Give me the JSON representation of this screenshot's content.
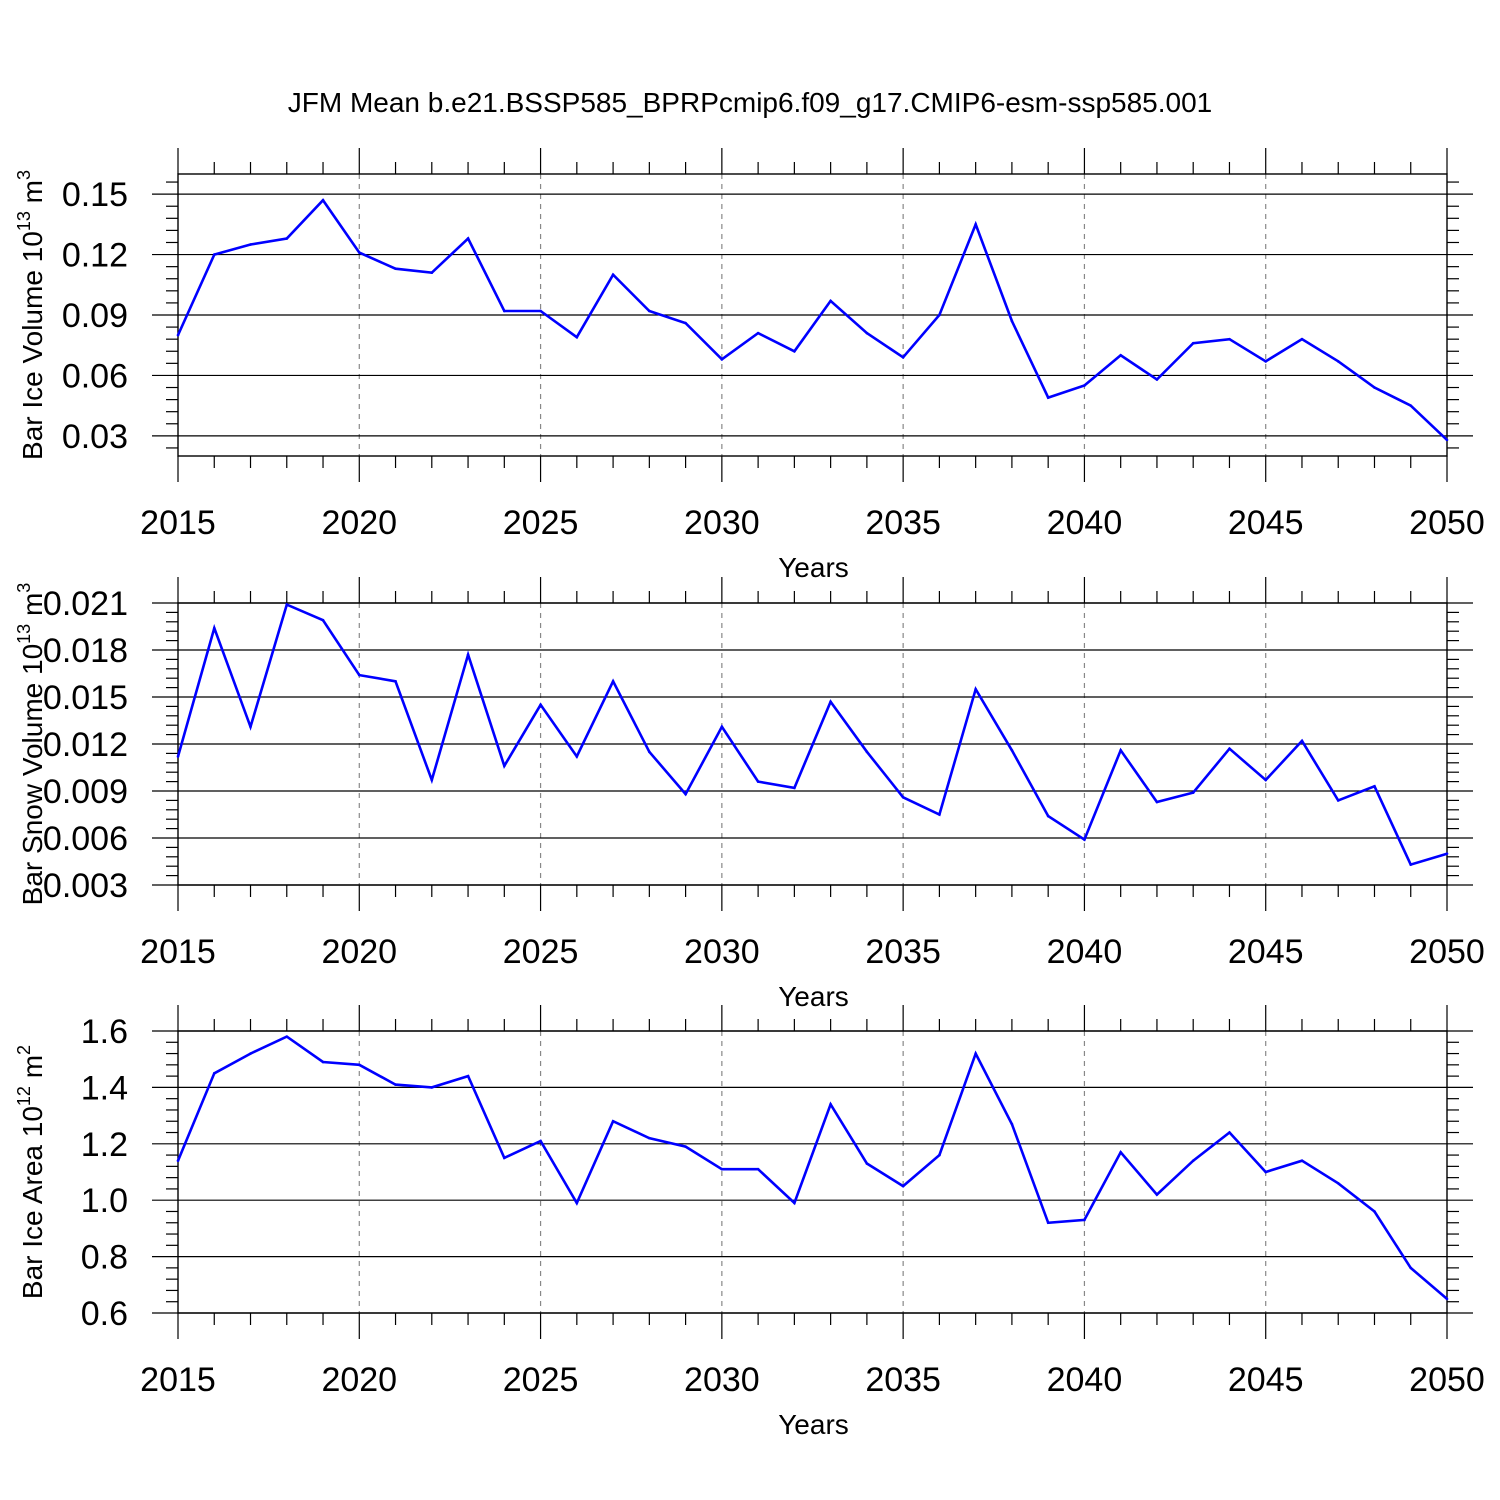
{
  "title": "JFM Mean b.e21.BSSP585_BPRPcmip6.f09_g17.CMIP6-esm-ssp585.001",
  "colors": {
    "line": "#0000ff",
    "axis": "#000000",
    "grid": "#888888"
  },
  "chart_data": [
    {
      "type": "line",
      "xlabel": "Years",
      "ylabel": {
        "text": "Bar Ice Volume 10",
        "sup": "13",
        "mid": " m",
        "sup2": "3"
      },
      "xlim": [
        2015,
        2050
      ],
      "ylim": [
        0.02,
        0.16
      ],
      "yticks": [
        "0.03",
        "0.06",
        "0.09",
        "0.12",
        "0.15"
      ],
      "xticks": [
        "2015",
        "2020",
        "2025",
        "2030",
        "2035",
        "2040",
        "2045",
        "2050"
      ],
      "x": [
        2015,
        2016,
        2017,
        2018,
        2019,
        2020,
        2021,
        2022,
        2023,
        2024,
        2025,
        2026,
        2027,
        2028,
        2029,
        2030,
        2031,
        2032,
        2033,
        2034,
        2035,
        2036,
        2037,
        2038,
        2039,
        2040,
        2041,
        2042,
        2043,
        2044,
        2045,
        2046,
        2047,
        2048,
        2049,
        2050
      ],
      "values": [
        0.08,
        0.12,
        0.125,
        0.128,
        0.147,
        0.121,
        0.113,
        0.111,
        0.128,
        0.092,
        0.092,
        0.079,
        0.11,
        0.092,
        0.086,
        0.068,
        0.081,
        0.072,
        0.097,
        0.081,
        0.069,
        0.09,
        0.135,
        0.087,
        0.049,
        0.055,
        0.07,
        0.058,
        0.076,
        0.078,
        0.067,
        0.078,
        0.067,
        0.054,
        0.045,
        0.028
      ]
    },
    {
      "type": "line",
      "xlabel": "Years",
      "ylabel": {
        "text": "Bar Snow Volume 10",
        "sup": "13",
        "mid": " m",
        "sup2": "3"
      },
      "xlim": [
        2015,
        2050
      ],
      "ylim": [
        0.003,
        0.021
      ],
      "yticks": [
        "0.003",
        "0.006",
        "0.009",
        "0.012",
        "0.015",
        "0.018",
        "0.021"
      ],
      "xticks": [
        "2015",
        "2020",
        "2025",
        "2030",
        "2035",
        "2040",
        "2045",
        "2050"
      ],
      "x": [
        2015,
        2016,
        2017,
        2018,
        2019,
        2020,
        2021,
        2022,
        2023,
        2024,
        2025,
        2026,
        2027,
        2028,
        2029,
        2030,
        2031,
        2032,
        2033,
        2034,
        2035,
        2036,
        2037,
        2038,
        2039,
        2040,
        2041,
        2042,
        2043,
        2044,
        2045,
        2046,
        2047,
        2048,
        2049,
        2050
      ],
      "values": [
        0.0112,
        0.0194,
        0.0131,
        0.0209,
        0.0199,
        0.0164,
        0.016,
        0.0097,
        0.0177,
        0.0106,
        0.0145,
        0.0112,
        0.016,
        0.0115,
        0.0088,
        0.0131,
        0.0096,
        0.0092,
        0.0147,
        0.0115,
        0.0086,
        0.0075,
        0.0155,
        0.0116,
        0.0074,
        0.0059,
        0.0116,
        0.0083,
        0.0089,
        0.0117,
        0.0097,
        0.0122,
        0.0084,
        0.0093,
        0.0043,
        0.005
      ]
    },
    {
      "type": "line",
      "xlabel": "Years",
      "ylabel": {
        "text": "Bar Ice Area 10",
        "sup": "12",
        "mid": " m",
        "sup2": "2"
      },
      "xlim": [
        2015,
        2050
      ],
      "ylim": [
        0.6,
        1.6
      ],
      "yticks": [
        "0.6",
        "0.8",
        "1.0",
        "1.2",
        "1.4",
        "1.6"
      ],
      "xticks": [
        "2015",
        "2020",
        "2025",
        "2030",
        "2035",
        "2040",
        "2045",
        "2050"
      ],
      "x": [
        2015,
        2016,
        2017,
        2018,
        2019,
        2020,
        2021,
        2022,
        2023,
        2024,
        2025,
        2026,
        2027,
        2028,
        2029,
        2030,
        2031,
        2032,
        2033,
        2034,
        2035,
        2036,
        2037,
        2038,
        2039,
        2040,
        2041,
        2042,
        2043,
        2044,
        2045,
        2046,
        2047,
        2048,
        2049,
        2050
      ],
      "values": [
        1.14,
        1.45,
        1.52,
        1.58,
        1.49,
        1.48,
        1.41,
        1.4,
        1.44,
        1.15,
        1.21,
        0.99,
        1.28,
        1.22,
        1.19,
        1.11,
        1.11,
        0.99,
        1.34,
        1.13,
        1.05,
        1.16,
        1.52,
        1.27,
        0.92,
        0.93,
        1.17,
        1.02,
        1.14,
        1.24,
        1.1,
        1.14,
        1.06,
        0.96,
        0.76,
        0.65
      ]
    }
  ]
}
